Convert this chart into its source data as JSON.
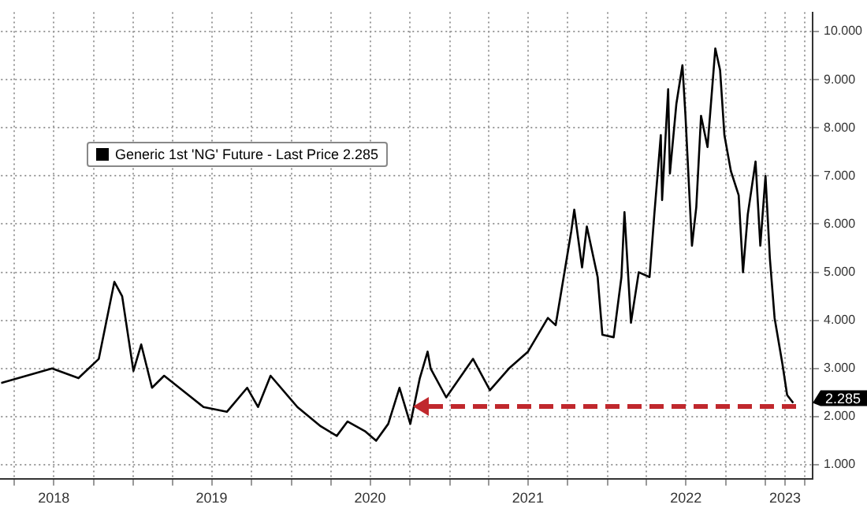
{
  "chart_data": {
    "type": "line",
    "legend": "top left",
    "grid": true,
    "marker": "none",
    "line_style": "solid",
    "xlim": [
      "2018-03-01",
      "2023-04-20"
    ],
    "xticks": [
      {
        "value": "2018-04-01",
        "label": null
      },
      {
        "value": "2018-07-01",
        "label": "2018"
      },
      {
        "value": "2018-10-01",
        "label": null
      },
      {
        "value": "2019-01-01",
        "label": null
      },
      {
        "value": "2019-04-01",
        "label": null
      },
      {
        "value": "2019-07-01",
        "label": "2019"
      },
      {
        "value": "2019-10-01",
        "label": null
      },
      {
        "value": "2020-01-01",
        "label": null
      },
      {
        "value": "2020-04-01",
        "label": null
      },
      {
        "value": "2020-07-01",
        "label": "2020"
      },
      {
        "value": "2020-10-01",
        "label": null
      },
      {
        "value": "2021-01-01",
        "label": null
      },
      {
        "value": "2021-04-01",
        "label": null
      },
      {
        "value": "2021-07-01",
        "label": "2021"
      },
      {
        "value": "2021-10-01",
        "label": null
      },
      {
        "value": "2022-01-01",
        "label": null
      },
      {
        "value": "2022-04-01",
        "label": null
      },
      {
        "value": "2022-07-01",
        "label": "2022"
      },
      {
        "value": "2022-10-01",
        "label": null
      },
      {
        "value": "2023-01-01",
        "label": null
      },
      {
        "value": "2023-02-15",
        "label": "2023"
      },
      {
        "value": "2023-04-01",
        "label": null
      }
    ],
    "ylim": [
      0.7,
      10.4
    ],
    "yticks": [
      {
        "value": 1,
        "label": "1.000"
      },
      {
        "value": 2,
        "label": "2.000"
      },
      {
        "value": 3,
        "label": "3.000"
      },
      {
        "value": 4,
        "label": "4.000"
      },
      {
        "value": 5,
        "label": "5.000"
      },
      {
        "value": 6,
        "label": "6.000"
      },
      {
        "value": 7,
        "label": "7.000"
      },
      {
        "value": 8,
        "label": "8.000"
      },
      {
        "value": 9,
        "label": "9.000"
      },
      {
        "value": 10,
        "label": "10.000"
      }
    ],
    "annotations": [
      "2.285"
    ],
    "series": [
      {
        "name": "Generic 1st 'NG' Future - Last Price 2.285",
        "color": "#000000",
        "x": [
          "2018-03-01",
          "2018-06-27",
          "2018-08-27",
          "2018-10-13",
          "2018-11-18",
          "2018-12-06",
          "2019-01-01",
          "2019-01-19",
          "2019-02-13",
          "2019-03-13",
          "2019-06-12",
          "2019-08-05",
          "2019-09-21",
          "2019-10-16",
          "2019-11-14",
          "2020-01-15",
          "2020-03-09",
          "2020-04-15",
          "2020-05-10",
          "2020-06-19",
          "2020-07-15",
          "2020-08-12",
          "2020-09-07",
          "2020-10-02",
          "2020-10-24",
          "2020-11-11",
          "2020-11-18",
          "2020-12-24",
          "2021-02-24",
          "2021-04-04",
          "2021-05-18",
          "2021-07-01",
          "2021-08-16",
          "2021-09-03",
          "2021-10-09",
          "2021-10-16",
          "2021-11-03",
          "2021-11-14",
          "2021-12-09",
          "2021-12-20",
          "2022-01-15",
          "2022-02-02",
          "2022-02-09",
          "2022-02-24",
          "2022-03-14",
          "2022-04-08",
          "2022-04-19",
          "2022-05-04",
          "2022-05-07",
          "2022-05-21",
          "2022-05-25",
          "2022-06-09",
          "2022-06-23",
          "2022-06-30",
          "2022-07-15",
          "2022-07-25",
          "2022-08-05",
          "2022-08-20",
          "2022-09-07",
          "2022-09-18",
          "2022-09-28",
          "2022-10-13",
          "2022-10-31",
          "2022-11-10",
          "2022-11-21",
          "2022-12-09",
          "2022-12-20",
          "2023-01-01",
          "2023-01-11",
          "2023-01-22",
          "2023-02-09",
          "2023-02-20",
          "2023-03-06"
        ],
        "values": [
          2.7,
          3.0,
          2.8,
          3.2,
          4.8,
          4.5,
          2.95,
          3.5,
          2.6,
          2.85,
          2.2,
          2.1,
          2.6,
          2.2,
          2.85,
          2.2,
          1.8,
          1.6,
          1.9,
          1.7,
          1.5,
          1.85,
          2.6,
          1.85,
          2.8,
          3.35,
          3.0,
          2.4,
          3.2,
          2.55,
          3.0,
          3.35,
          4.05,
          3.9,
          5.85,
          6.3,
          5.1,
          5.95,
          4.9,
          3.7,
          3.65,
          4.9,
          6.25,
          3.95,
          5.0,
          4.9,
          6.2,
          7.85,
          6.5,
          8.8,
          7.05,
          8.5,
          9.3,
          8.25,
          5.55,
          6.35,
          8.25,
          7.6,
          9.65,
          9.2,
          7.85,
          7.1,
          6.6,
          5.0,
          6.2,
          7.3,
          5.55,
          7.0,
          5.3,
          4.05,
          3.1,
          2.45,
          2.285
        ]
      }
    ]
  }
}
